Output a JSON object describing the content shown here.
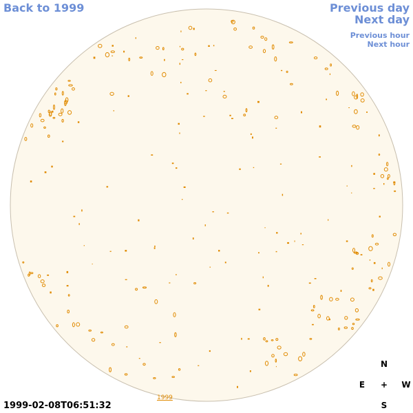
{
  "navigation": {
    "back_label": "Back to 1999",
    "prev_day_label": "Previous day",
    "next_day_label": "Next day",
    "prev_hour_label": "Previous hour",
    "next_hour_label": "Next hour"
  },
  "map": {
    "timestamp": "1999-02-08T06:51:32",
    "year_label": "1999",
    "disk_color": "#fdf8ec",
    "disk_border_color": "#c8bfae",
    "feature_color": "#e08a00"
  },
  "compass": {
    "north": "N",
    "east": "E",
    "center": "+",
    "west": "W",
    "south": "S"
  }
}
